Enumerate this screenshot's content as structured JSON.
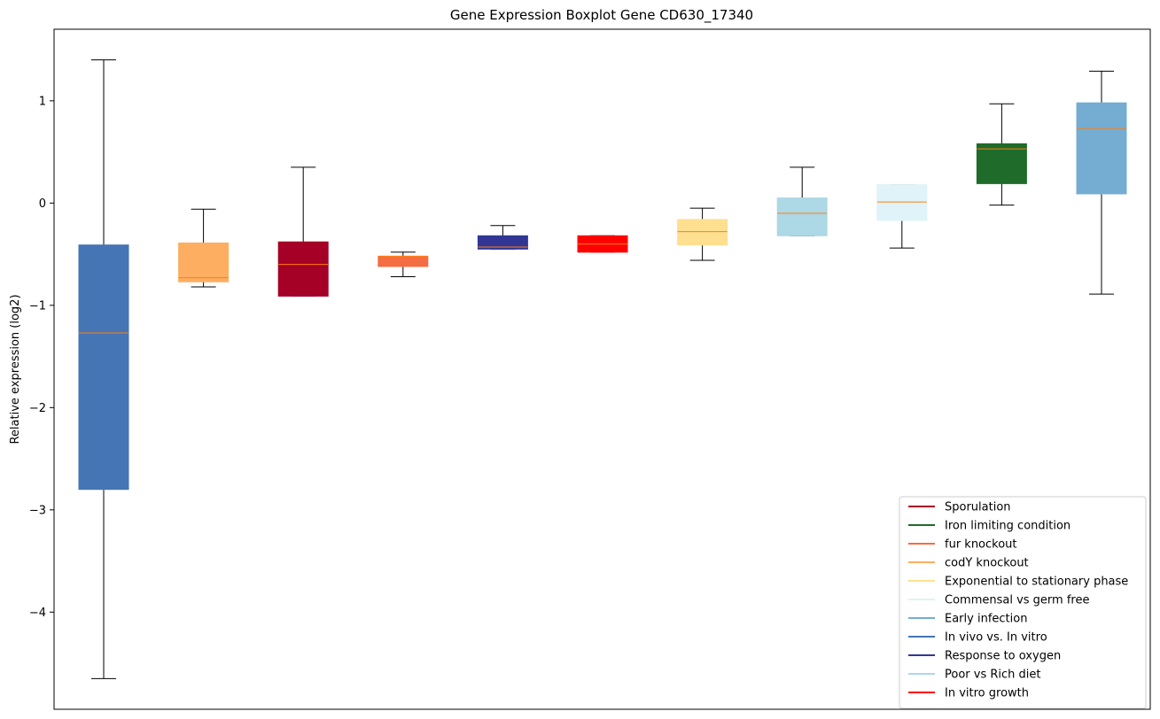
{
  "chart_data": {
    "type": "boxplot",
    "title": "Gene Expression Boxplot Gene CD630_17340",
    "ylabel": "Relative expression (log2)",
    "xlabel": "",
    "ylim": [
      -4.95,
      1.7
    ],
    "yticks": [
      {
        "value": 1,
        "label": "1"
      },
      {
        "value": 0,
        "label": "0"
      },
      {
        "value": -1,
        "label": "−1"
      },
      {
        "value": -2,
        "label": "−2"
      },
      {
        "value": -3,
        "label": "−3"
      },
      {
        "value": -4,
        "label": "−4"
      }
    ],
    "grid": false,
    "legend_position": "bottom-right",
    "median_color": "#ff7f0e",
    "boxes": [
      {
        "name": "In vivo vs. In vitro",
        "color": "#4575b4",
        "whisker_low": -4.65,
        "q1": -2.8,
        "median": -1.27,
        "q3": -0.41,
        "whisker_high": 1.4
      },
      {
        "name": "codY knockout",
        "color": "#fdae61",
        "whisker_low": -0.82,
        "q1": -0.77,
        "median": -0.73,
        "q3": -0.39,
        "whisker_high": -0.06
      },
      {
        "name": "Sporulation",
        "color": "#a50026",
        "whisker_low": -0.91,
        "q1": -0.91,
        "median": -0.6,
        "q3": -0.38,
        "whisker_high": 0.35
      },
      {
        "name": "fur knockout",
        "color": "#f46d43",
        "whisker_low": -0.72,
        "q1": -0.62,
        "median": -0.52,
        "q3": -0.52,
        "whisker_high": -0.48
      },
      {
        "name": "Response to oxygen",
        "color": "#313695",
        "whisker_low": -0.45,
        "q1": -0.45,
        "median": -0.43,
        "q3": -0.32,
        "whisker_high": -0.22
      },
      {
        "name": "In vitro growth",
        "color": "#ff0000",
        "whisker_low": -0.48,
        "q1": -0.48,
        "median": -0.4,
        "q3": -0.32,
        "whisker_high": -0.32
      },
      {
        "name": "Exponential to stationary phase",
        "color": "#fee090",
        "whisker_low": -0.56,
        "q1": -0.41,
        "median": -0.28,
        "q3": -0.16,
        "whisker_high": -0.05
      },
      {
        "name": "Poor vs Rich diet",
        "color": "#add8e6",
        "whisker_low": -0.32,
        "q1": -0.32,
        "median": -0.1,
        "q3": 0.05,
        "whisker_high": 0.35
      },
      {
        "name": "Commensal vs germ free",
        "color": "#e0f3f8",
        "whisker_low": -0.44,
        "q1": -0.17,
        "median": 0.01,
        "q3": 0.18,
        "whisker_high": 0.18
      },
      {
        "name": "Iron limiting condition",
        "color": "#1f6b2a",
        "whisker_low": -0.02,
        "q1": 0.19,
        "median": 0.53,
        "q3": 0.58,
        "whisker_high": 0.97
      },
      {
        "name": "Early infection",
        "color": "#74add1",
        "whisker_low": -0.89,
        "q1": 0.09,
        "median": 0.73,
        "q3": 0.98,
        "whisker_high": 1.29
      }
    ],
    "legend": [
      {
        "label": "Sporulation",
        "color": "#a50026"
      },
      {
        "label": "Iron limiting condition",
        "color": "#1f6b2a"
      },
      {
        "label": "fur knockout",
        "color": "#f46d43"
      },
      {
        "label": "codY knockout",
        "color": "#fdae61"
      },
      {
        "label": "Exponential to stationary phase",
        "color": "#fee090"
      },
      {
        "label": "Commensal vs germ free",
        "color": "#e0f3f8"
      },
      {
        "label": "Early infection",
        "color": "#74add1"
      },
      {
        "label": "In vivo vs. In vitro",
        "color": "#4575b4"
      },
      {
        "label": "Response to oxygen",
        "color": "#313695"
      },
      {
        "label": "Poor vs Rich diet",
        "color": "#add8e6"
      },
      {
        "label": "In vitro growth",
        "color": "#ff0000"
      }
    ]
  }
}
